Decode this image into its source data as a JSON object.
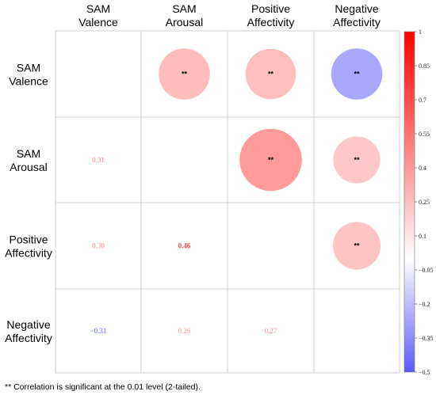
{
  "chart_data": {
    "type": "heatmap",
    "variables": [
      "SAM Valence",
      "SAM Arousal",
      "Positive Affectivity",
      "Negative Affectivity"
    ],
    "column_labels": [
      [
        "SAM",
        "Valence"
      ],
      [
        "SAM",
        "Arousal"
      ],
      [
        "Positive",
        "Affectivity"
      ],
      [
        "Negative",
        "Affectivity"
      ]
    ],
    "row_labels": [
      [
        "SAM",
        "Valence"
      ],
      [
        "SAM",
        "Arousal"
      ],
      [
        "Positive",
        "Affectivity"
      ],
      [
        "Negative",
        "Affectivity"
      ]
    ],
    "lower_triangle_values": [
      {
        "row": 1,
        "col": 0,
        "value": 0.31,
        "text": "0.31"
      },
      {
        "row": 2,
        "col": 0,
        "value": 0.3,
        "text": "0.30"
      },
      {
        "row": 2,
        "col": 1,
        "value": 0.46,
        "text": "0.46"
      },
      {
        "row": 3,
        "col": 0,
        "value": -0.31,
        "text": "−0.31"
      },
      {
        "row": 3,
        "col": 1,
        "value": 0.26,
        "text": "0.26"
      },
      {
        "row": 3,
        "col": 2,
        "value": 0.27,
        "text": "0.27"
      }
    ],
    "upper_triangle_circles": [
      {
        "row": 0,
        "col": 1,
        "value": 0.31,
        "marker": "**"
      },
      {
        "row": 0,
        "col": 2,
        "value": 0.3,
        "marker": "**"
      },
      {
        "row": 0,
        "col": 3,
        "value": -0.31,
        "marker": "**"
      },
      {
        "row": 1,
        "col": 2,
        "value": 0.46,
        "marker": "**"
      },
      {
        "row": 1,
        "col": 3,
        "value": 0.26,
        "marker": "**"
      },
      {
        "row": 2,
        "col": 3,
        "value": 0.27,
        "marker": "**"
      }
    ],
    "colorbar": {
      "range": [
        -0.5,
        1
      ],
      "ticks": [
        {
          "value": 1,
          "text": "1"
        },
        {
          "value": 0.85,
          "text": "0.85"
        },
        {
          "value": 0.7,
          "text": "0.7"
        },
        {
          "value": 0.55,
          "text": "0.55"
        },
        {
          "value": 0.4,
          "text": "0.4"
        },
        {
          "value": 0.25,
          "text": "0.25"
        },
        {
          "value": 0.1,
          "text": "0.1"
        },
        {
          "value": -0.05,
          "text": "−0.05"
        },
        {
          "value": -0.2,
          "text": "−0.2"
        },
        {
          "value": -0.35,
          "text": "−0.35"
        },
        {
          "value": -0.5,
          "text": "−0.5"
        }
      ],
      "colors": {
        "negative": "#5a5aff",
        "zero": "#ffffff",
        "positive": "#ff0000"
      }
    },
    "footnote": "** Correlation is significant at the 0.01 level (2-tailed)."
  }
}
